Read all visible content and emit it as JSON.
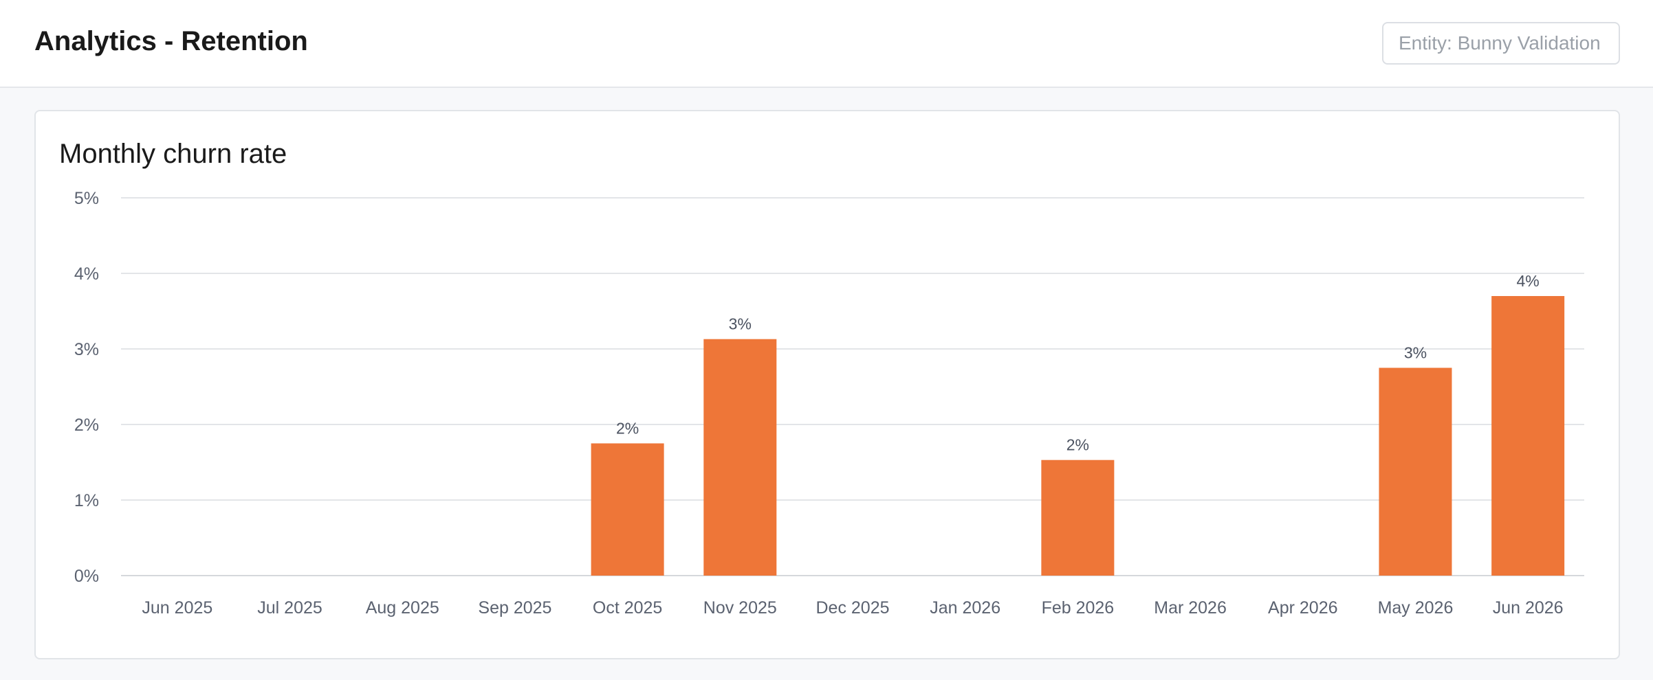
{
  "header": {
    "title": "Analytics - Retention",
    "entity_filter_placeholder": "Entity: Bunny Validation"
  },
  "card": {
    "title": "Monthly churn rate"
  },
  "colors": {
    "bar": "#ee7638",
    "gridline": "#e3e5e8",
    "axis": "#d5d8dc"
  },
  "chart_data": {
    "type": "bar",
    "title": "Monthly churn rate",
    "xlabel": "",
    "ylabel": "",
    "ylim": [
      0,
      5
    ],
    "y_ticks": [
      0,
      1,
      2,
      3,
      4,
      5
    ],
    "y_tick_labels": [
      "0%",
      "1%",
      "2%",
      "3%",
      "4%",
      "5%"
    ],
    "grid": true,
    "categories": [
      "Jun 2025",
      "Jul 2025",
      "Aug 2025",
      "Sep 2025",
      "Oct 2025",
      "Nov 2025",
      "Dec 2025",
      "Jan 2026",
      "Feb 2026",
      "Mar 2026",
      "Apr 2026",
      "May 2026",
      "Jun 2026"
    ],
    "values": [
      0,
      0,
      0,
      0,
      1.75,
      3.13,
      0,
      0,
      1.53,
      0,
      0,
      2.75,
      3.7
    ],
    "data_labels": [
      "",
      "",
      "",
      "",
      "2%",
      "3%",
      "",
      "",
      "2%",
      "",
      "",
      "3%",
      "4%"
    ]
  }
}
